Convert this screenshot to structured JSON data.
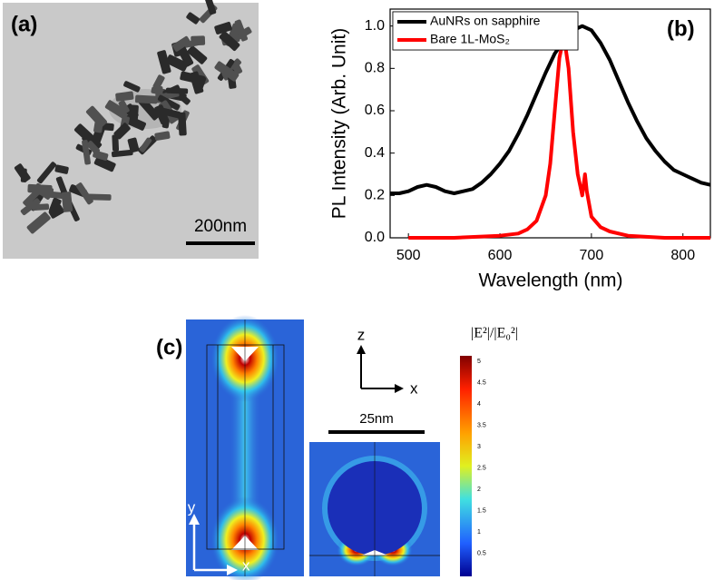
{
  "panel_a": {
    "label": "(a)",
    "scale_bar": "200nm"
  },
  "chart_data": {
    "type": "line",
    "panel_label": "(b)",
    "x_label": "Wavelength (nm)",
    "y_label": "PL Intensity (Arb. Unit)",
    "xlim": [
      480,
      830
    ],
    "ylim": [
      0,
      1.08
    ],
    "xticks": [
      500,
      600,
      700,
      800
    ],
    "yticks": [
      {
        "value": 0,
        "label": "0.0"
      },
      0.2,
      0.4,
      0.6,
      0.8,
      {
        "value": 1,
        "label": "1.0"
      }
    ],
    "grid": false,
    "legend": "upper left",
    "series": [
      {
        "name": "AuNRs on sapphire",
        "color": "#000000",
        "x": [
          480,
          490,
          500,
          510,
          520,
          530,
          540,
          550,
          560,
          570,
          580,
          590,
          600,
          610,
          620,
          630,
          640,
          650,
          660,
          670,
          680,
          690,
          700,
          710,
          720,
          730,
          740,
          750,
          760,
          770,
          780,
          790,
          800,
          810,
          820,
          830
        ],
        "values": [
          0.21,
          0.21,
          0.22,
          0.24,
          0.25,
          0.24,
          0.22,
          0.21,
          0.22,
          0.23,
          0.26,
          0.3,
          0.35,
          0.41,
          0.49,
          0.58,
          0.68,
          0.78,
          0.87,
          0.93,
          0.98,
          1.0,
          0.98,
          0.92,
          0.84,
          0.74,
          0.64,
          0.55,
          0.47,
          0.41,
          0.36,
          0.32,
          0.3,
          0.28,
          0.26,
          0.25
        ]
      },
      {
        "name": "Bare 1L-MoS₂",
        "color": "#ff0000",
        "x": [
          500,
          550,
          600,
          620,
          630,
          640,
          650,
          655,
          660,
          665,
          670,
          675,
          680,
          685,
          690,
          693,
          695,
          700,
          710,
          720,
          740,
          780,
          830
        ],
        "values": [
          0,
          0,
          0.01,
          0.02,
          0.04,
          0.08,
          0.2,
          0.35,
          0.6,
          0.85,
          0.95,
          0.8,
          0.5,
          0.3,
          0.2,
          0.3,
          0.22,
          0.1,
          0.05,
          0.03,
          0.01,
          0,
          0
        ]
      }
    ]
  },
  "panel_c": {
    "label": "(c)",
    "axis_z": "z",
    "axis_x_top": "x",
    "axis_y": "y",
    "axis_x_bottom": "x",
    "scale_bar": "25nm",
    "colorbar_title": "|E²|/|E₀²|",
    "colorbar_ticks": [
      "5",
      "4.5",
      "4",
      "3.5",
      "3",
      "2.5",
      "2",
      "1.5",
      "1",
      "0.5"
    ]
  }
}
